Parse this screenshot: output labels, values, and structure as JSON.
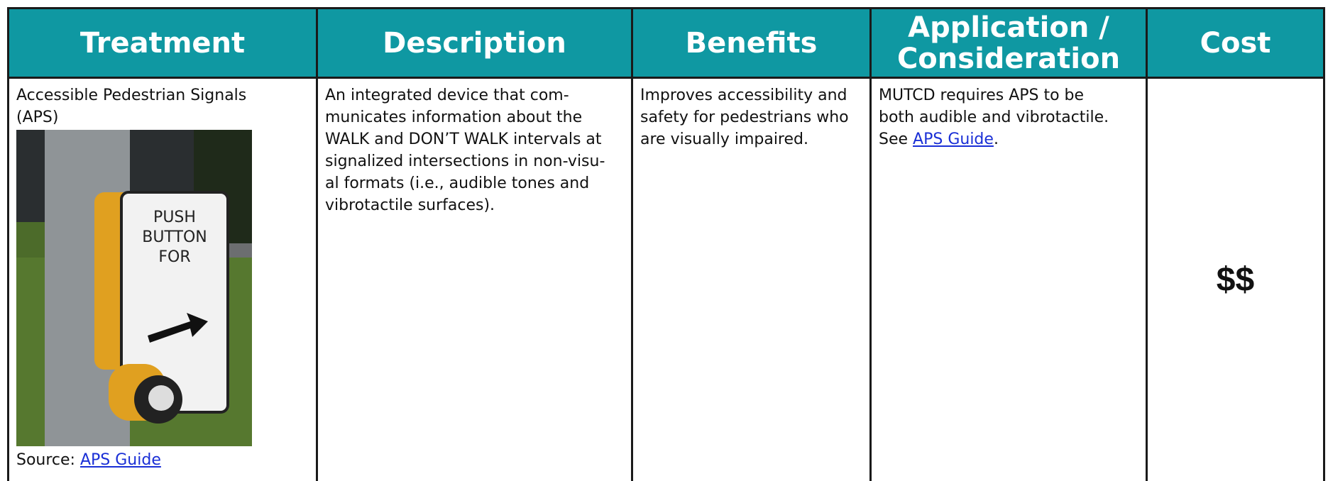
{
  "table": {
    "headers": [
      "Treatment",
      "Description",
      "Benefits",
      "Application / Consideration",
      "Cost"
    ],
    "row": {
      "treatment": {
        "name": "Accessible Pedestrian Signals (APS)",
        "source_label": "Source:",
        "source_link": "APS Guide"
      },
      "description": [
        "An integrated device that com-",
        "municates information about the",
        "WALK and DON’T WALK intervals at",
        "signalized intersections in non-visu-",
        "al formats (i.e., audible tones and",
        "vibrotactile surfaces)."
      ],
      "benefits": [
        "Improves accessibility and",
        "safety for pedestrians who",
        "are visually impaired."
      ],
      "application": {
        "lines": [
          "MUTCD requires APS to be",
          "both audible and vibrotactile."
        ],
        "see": "See",
        "link": "APS Guide",
        "end": "."
      },
      "cost": "$$"
    }
  }
}
